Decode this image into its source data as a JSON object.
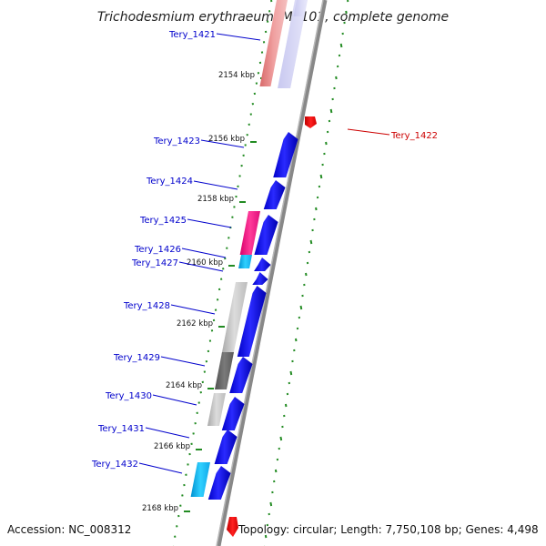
{
  "title": "Trichodesmium erythraeum IMS101, complete genome",
  "footer": {
    "accession": "Accession: NC_008312",
    "topology": "Topology: circular; Length: 7,750,108 bp; Genes: 4,498"
  },
  "colors": {
    "label_forward": "#0000cc",
    "label_reverse": "#cc0000",
    "forward_gene": "#0000ee",
    "reverse_gene": "#ee0000",
    "backbone": "#888888",
    "gc_dots": "#228b22"
  },
  "gene_labels": [
    {
      "text": "Tery_1421",
      "strand": "forward"
    },
    {
      "text": "Tery_1422",
      "strand": "reverse"
    },
    {
      "text": "Tery_1423",
      "strand": "forward"
    },
    {
      "text": "Tery_1424",
      "strand": "forward"
    },
    {
      "text": "Tery_1425",
      "strand": "forward"
    },
    {
      "text": "Tery_1426",
      "strand": "forward"
    },
    {
      "text": "Tery_1427",
      "strand": "forward"
    },
    {
      "text": "Tery_1428",
      "strand": "forward"
    },
    {
      "text": "Tery_1429",
      "strand": "forward"
    },
    {
      "text": "Tery_1430",
      "strand": "forward"
    },
    {
      "text": "Tery_1431",
      "strand": "forward"
    },
    {
      "text": "Tery_1432",
      "strand": "forward"
    }
  ],
  "kbp_ticks": [
    "2154 kbp",
    "2156 kbp",
    "2158 kbp",
    "2160 kbp",
    "2162 kbp",
    "2164 kbp",
    "2166 kbp",
    "2168 kbp"
  ]
}
